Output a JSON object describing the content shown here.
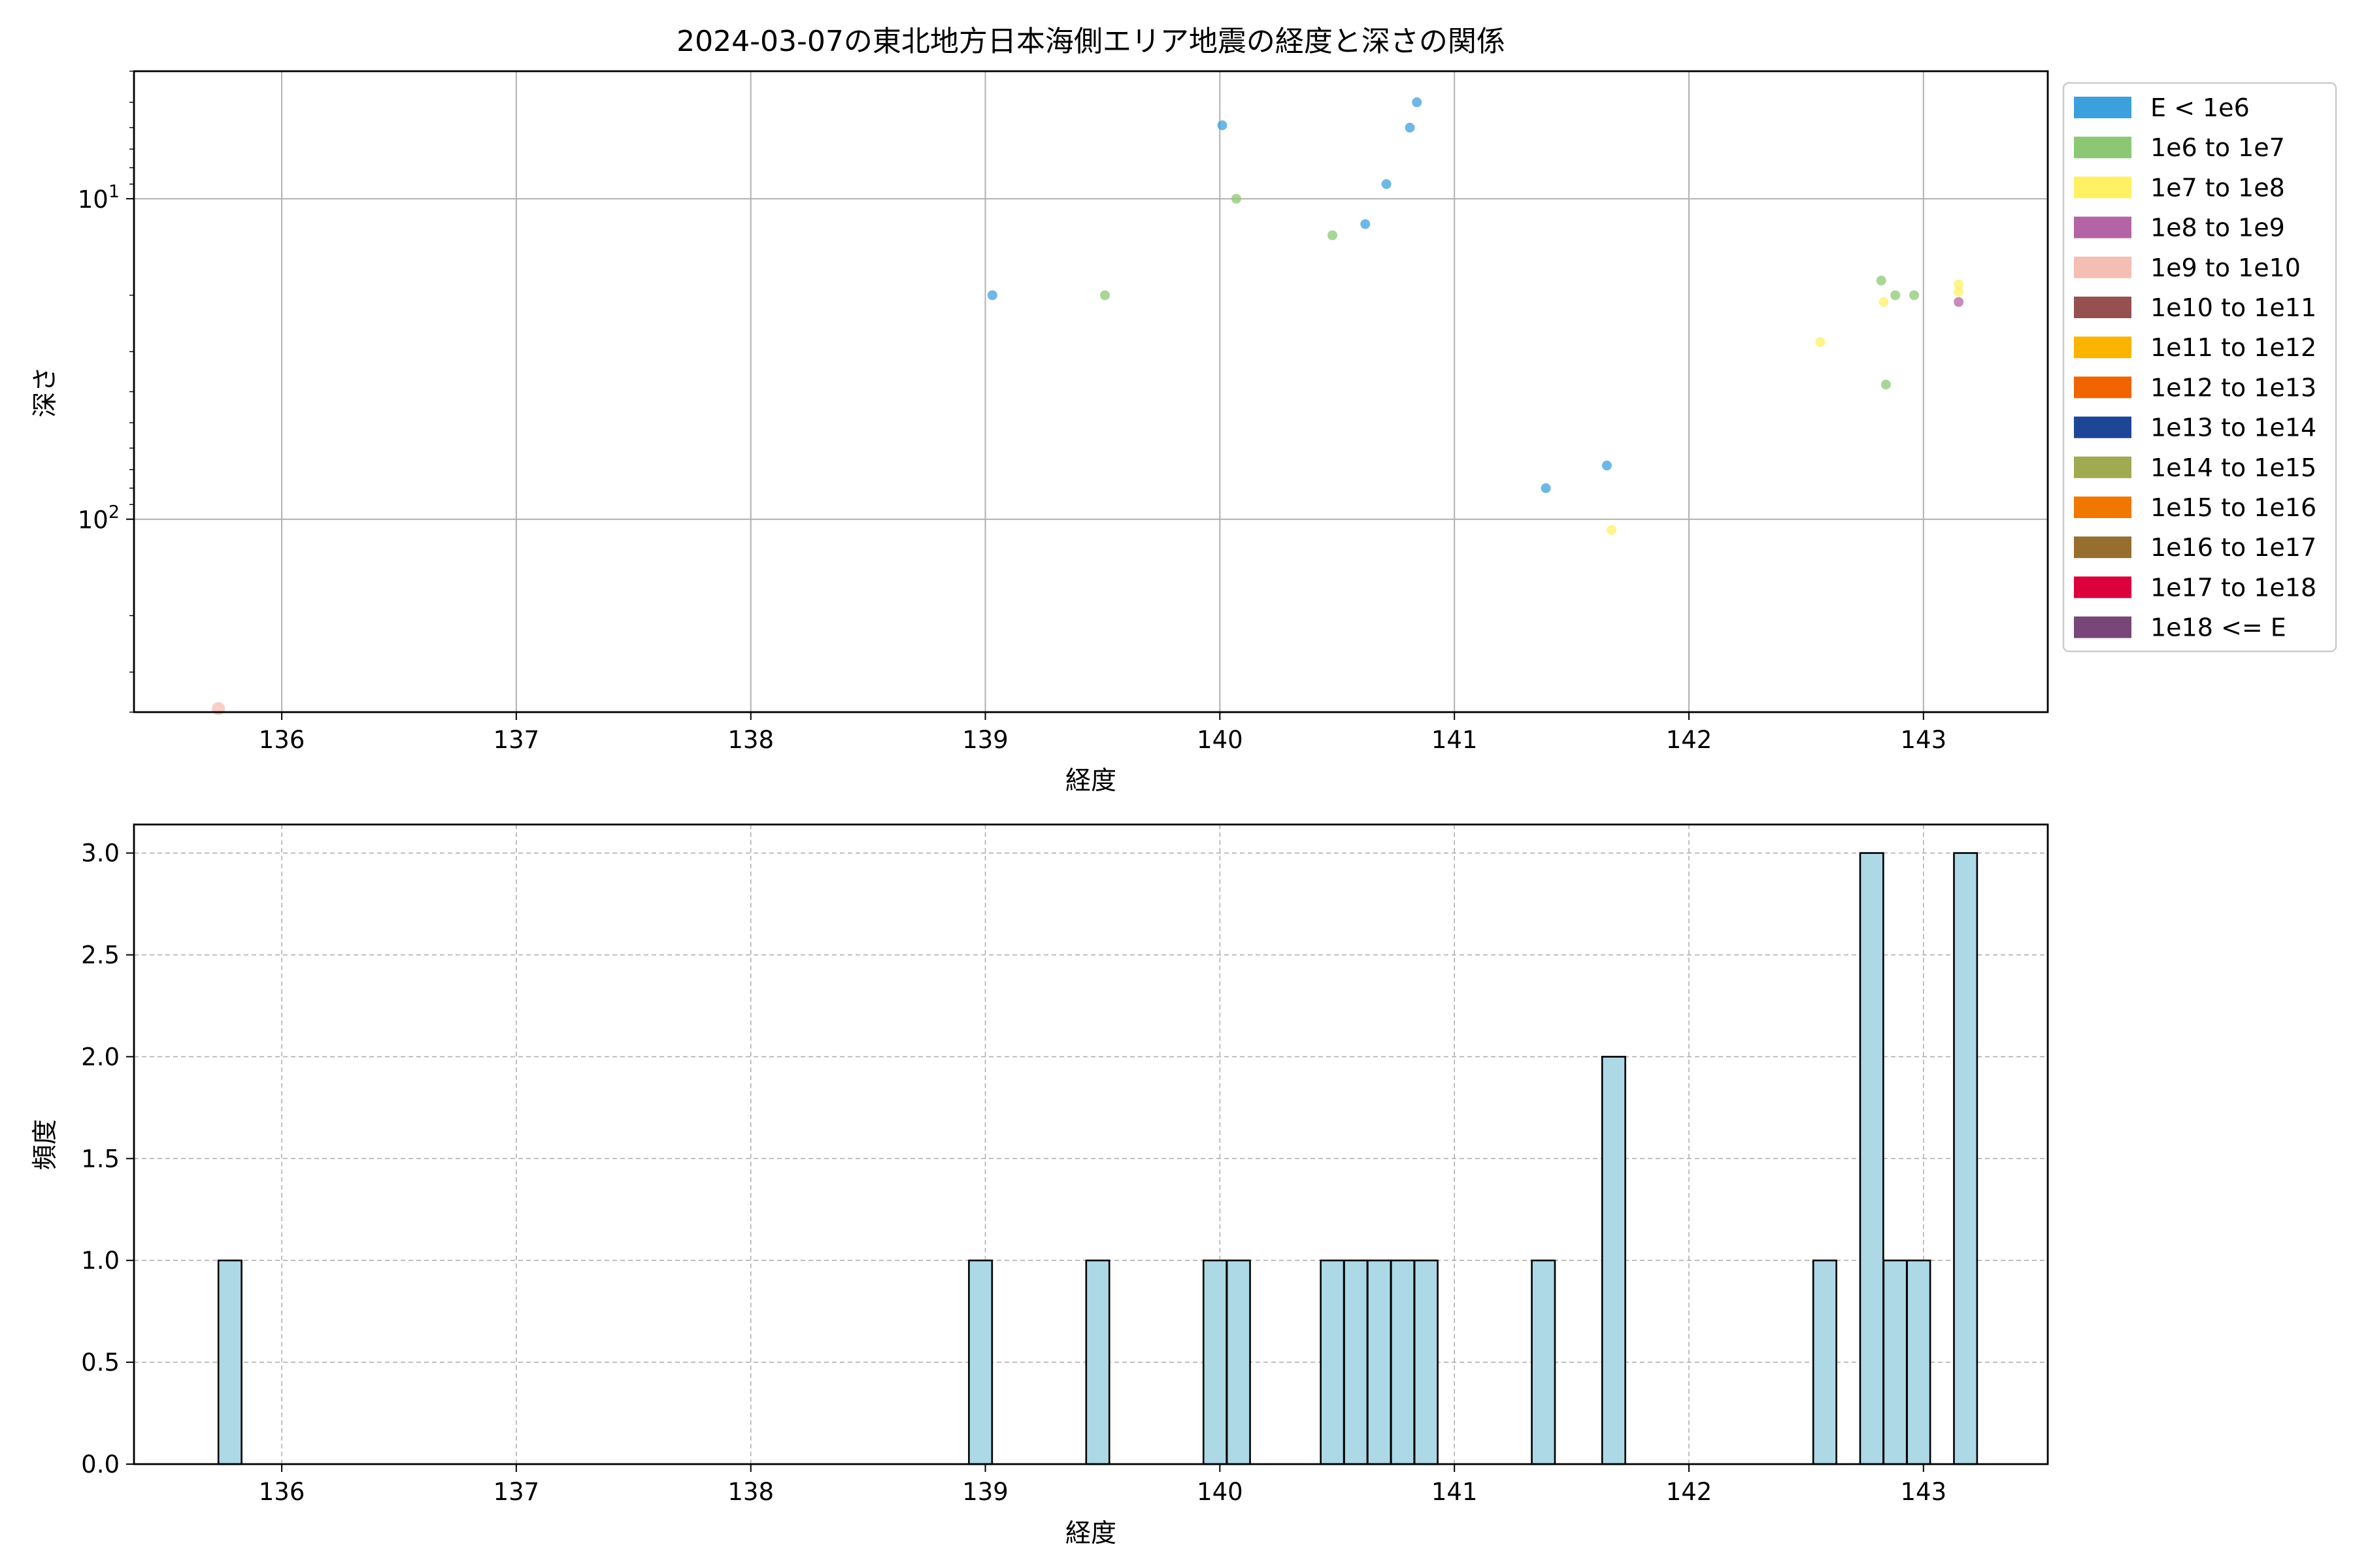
{
  "chart_data": [
    {
      "type": "scatter",
      "title": "2024-03-07の東北地方日本海側エリア地震の経度と深さの関係",
      "xlabel": "経度",
      "ylabel": "深さ",
      "xlim": [
        135.37,
        143.53
      ],
      "ylim": [
        400,
        4
      ],
      "y_scale": "log",
      "y_inverted": true,
      "grid": true,
      "x_ticks": [
        136,
        137,
        138,
        139,
        140,
        141,
        142,
        143
      ],
      "y_ticks": [
        {
          "value": 10,
          "base": "10",
          "exp": "1"
        },
        {
          "value": 100,
          "base": "10",
          "exp": "2"
        }
      ],
      "legend": {
        "placement": "outside-right",
        "entries": [
          {
            "label": "E < 1e6",
            "color": "#3ca0dc"
          },
          {
            "label": "1e6 to 1e7",
            "color": "#8cc873"
          },
          {
            "label": "1e7 to 1e8",
            "color": "#fff064"
          },
          {
            "label": "1e8 to 1e9",
            "color": "#b464a5"
          },
          {
            "label": "1e9 to 1e10",
            "color": "#f5beb4"
          },
          {
            "label": "1e10 to 1e11",
            "color": "#965050"
          },
          {
            "label": "1e11 to 1e12",
            "color": "#fab400"
          },
          {
            "label": "1e12 to 1e13",
            "color": "#f06400"
          },
          {
            "label": "1e13 to 1e14",
            "color": "#1e4696"
          },
          {
            "label": "1e14 to 1e15",
            "color": "#a0aa50"
          },
          {
            "label": "1e15 to 1e16",
            "color": "#f07800"
          },
          {
            "label": "1e16 to 1e17",
            "color": "#966e2d"
          },
          {
            "label": "1e17 to 1e18",
            "color": "#dc003c"
          },
          {
            "label": "1e18 <= E",
            "color": "#784678"
          }
        ]
      },
      "series": [
        {
          "bin": 0,
          "points": [
            [
              139.03,
              20
            ],
            [
              140.01,
              5.9
            ],
            [
              140.62,
              12
            ],
            [
              140.71,
              9
            ],
            [
              140.81,
              6
            ],
            [
              140.84,
              5
            ],
            [
              141.39,
              80
            ],
            [
              141.65,
              68
            ]
          ]
        },
        {
          "bin": 1,
          "points": [
            [
              139.51,
              20
            ],
            [
              140.07,
              10
            ],
            [
              140.48,
              13
            ],
            [
              142.82,
              18
            ],
            [
              142.88,
              20
            ],
            [
              142.96,
              20
            ],
            [
              142.84,
              38
            ]
          ]
        },
        {
          "bin": 2,
          "points": [
            [
              142.56,
              28
            ],
            [
              142.83,
              21
            ],
            [
              143.15,
              18.5
            ],
            [
              143.15,
              19.5
            ],
            [
              141.67,
              108
            ]
          ]
        },
        {
          "bin": 3,
          "points": [
            [
              143.15,
              21
            ]
          ]
        },
        {
          "bin": 4,
          "points": [
            [
              135.73,
              390
            ]
          ]
        }
      ]
    },
    {
      "type": "bar",
      "subtype": "histogram",
      "xlabel": "経度",
      "ylabel": "頻度",
      "xlim": [
        135.37,
        143.53
      ],
      "ylim": [
        0,
        3.14
      ],
      "grid": true,
      "x_ticks": [
        136,
        137,
        138,
        139,
        140,
        141,
        142,
        143
      ],
      "y_ticks": [
        "0.0",
        "0.5",
        "1.0",
        "1.5",
        "2.0",
        "2.5",
        "3.0"
      ],
      "bin_width": 0.0987,
      "bars": [
        {
          "x": 135.73,
          "count": 1
        },
        {
          "x": 138.93,
          "count": 1
        },
        {
          "x": 139.43,
          "count": 1
        },
        {
          "x": 139.93,
          "count": 1
        },
        {
          "x": 140.03,
          "count": 1
        },
        {
          "x": 140.43,
          "count": 1
        },
        {
          "x": 140.53,
          "count": 1
        },
        {
          "x": 140.63,
          "count": 1
        },
        {
          "x": 140.73,
          "count": 1
        },
        {
          "x": 140.83,
          "count": 1
        },
        {
          "x": 141.33,
          "count": 1
        },
        {
          "x": 141.63,
          "count": 2
        },
        {
          "x": 142.53,
          "count": 1
        },
        {
          "x": 142.73,
          "count": 3
        },
        {
          "x": 142.83,
          "count": 1
        },
        {
          "x": 142.93,
          "count": 1
        },
        {
          "x": 143.13,
          "count": 3
        }
      ]
    }
  ]
}
